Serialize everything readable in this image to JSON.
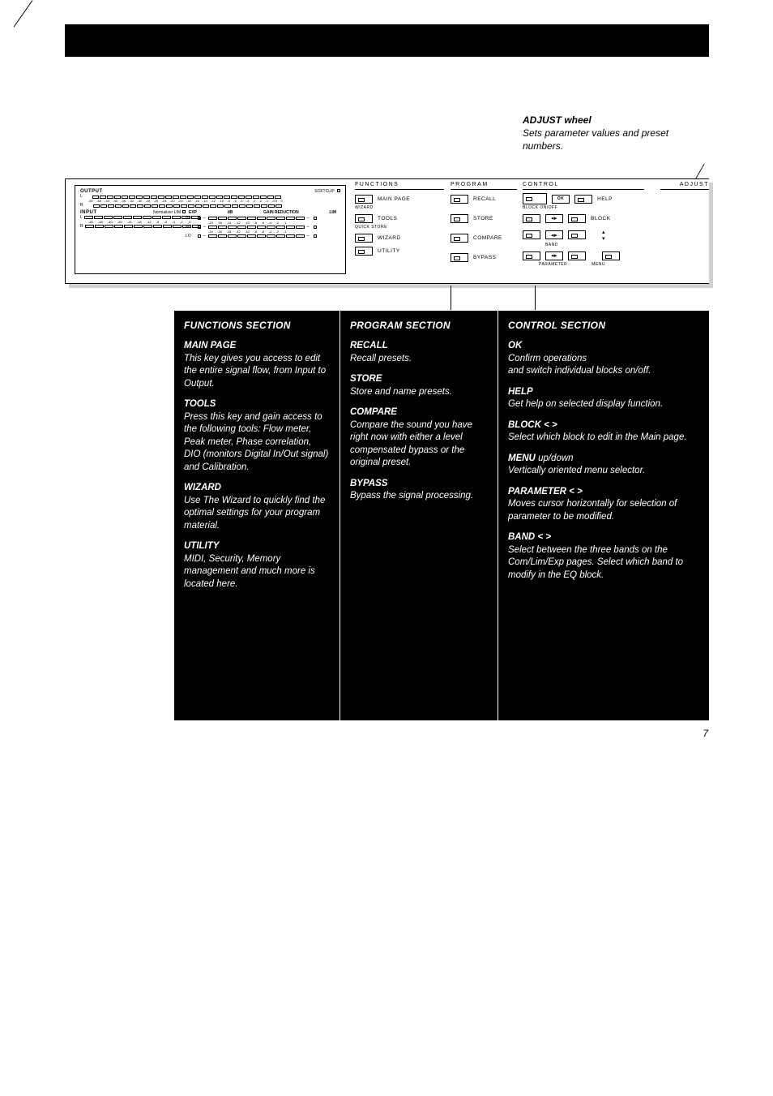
{
  "adjust": {
    "title": "ADJUST wheel",
    "body": "Sets parameter values and preset numbers."
  },
  "panel": {
    "meters": {
      "output_label": "OUTPUT",
      "softclip": "SOFTCLIP",
      "scale_out": [
        "-60",
        "-48",
        "-44",
        "-40",
        "-36",
        "-32",
        "-30",
        "-28",
        "-26",
        "-24",
        "-22",
        "-20",
        "-18",
        "-16",
        "-14",
        "-12",
        "-10",
        "-8",
        "-6",
        "-5",
        "-4",
        "-3",
        "-2",
        "-1",
        "-0.5",
        "0"
      ],
      "input_label": "INPUT",
      "normalizer": "Normalizer LIM",
      "scale_in": [
        "-60",
        "-48",
        "-40",
        "-30",
        "-24",
        "-18",
        "-12",
        "-8",
        "-6",
        "-4",
        "-2",
        "-0"
      ],
      "gain_hdr_left": "EXP",
      "gain_hdr_mid": "dB",
      "gain_hdr_title": "GAIN REDUCTION",
      "gain_hdr_right": "LIM",
      "gain_scale": [
        "-20",
        "-16",
        "-14",
        "-12",
        "-10",
        "-8",
        "-6",
        "-4",
        "-2",
        "-1"
      ],
      "lo_scale": [
        "-24",
        "-20",
        "-16",
        "-12",
        "-10",
        "-8",
        "-6",
        "-4",
        "-2",
        "-1"
      ],
      "hi": "HI",
      "mi": "MI",
      "lo": "LO"
    },
    "functions": {
      "title": "FUNCTIONS",
      "items": [
        {
          "label": "MAIN PAGE",
          "sub": "WIZARD"
        },
        {
          "label": "TOOLS",
          "sub": "QUICK STORE"
        },
        {
          "label": "WIZARD",
          "sub": ""
        },
        {
          "label": "UTILITY",
          "sub": ""
        }
      ]
    },
    "program": {
      "title": "PROGRAM",
      "items": [
        {
          "label": "RECALL"
        },
        {
          "label": "STORE"
        },
        {
          "label": "COMPARE"
        },
        {
          "label": "BYPASS"
        }
      ]
    },
    "control": {
      "title": "CONTROL",
      "ok": "OK",
      "help": "HELP",
      "sub_ok": "BLOCK ON/OFF",
      "block": "BLOCK",
      "band": "BAND",
      "parameter": "PARAMETER",
      "menu": "MENU"
    },
    "adjust_title": "ADJUST"
  },
  "functions_section": {
    "title": "FUNCTIONS SECTION",
    "items": [
      {
        "h": "MAIN PAGE",
        "b": "This key gives you access to edit the entire signal flow, from Input to Output."
      },
      {
        "h": "TOOLS",
        "b": "Press this key and gain access to the following tools: Flow meter, Peak meter, Phase correlation, DIO (monitors Digital In/Out signal) and Calibration."
      },
      {
        "h": "WIZARD",
        "b": "Use The Wizard to quickly find the optimal settings for your program material."
      },
      {
        "h": "UTILITY",
        "b": "MIDI, Security, Memory management and much more is located here."
      }
    ]
  },
  "program_section": {
    "title": "PROGRAM SECTION",
    "items": [
      {
        "h": "RECALL",
        "b": "Recall presets."
      },
      {
        "h": "STORE",
        "b": "Store and name presets."
      },
      {
        "h": "COMPARE",
        "b": "Compare the sound you have right now with either a level compensated bypass or the original preset."
      },
      {
        "h": "BYPASS",
        "b": "Bypass the signal processing."
      }
    ]
  },
  "control_section": {
    "title": "CONTROL SECTION",
    "items": [
      {
        "h": "OK",
        "b": "Confirm operations",
        "b2": "and switch individual blocks on/off."
      },
      {
        "h": "HELP",
        "b": "Get help on selected display function."
      },
      {
        "h": "BLOCK < >",
        "b": "Select which block to edit in the Main page."
      },
      {
        "h": "MENU",
        "suffix": " up/down",
        "b": "Vertically oriented menu selector."
      },
      {
        "h": "PARAMETER < >",
        "b": "Moves cursor horizontally for selection of parameter to be modified."
      },
      {
        "h": "BAND < >",
        "b": "Select between the three bands on the Com/Lim/Exp pages. Select which band to modify in the EQ block."
      }
    ]
  },
  "page_number": "7"
}
